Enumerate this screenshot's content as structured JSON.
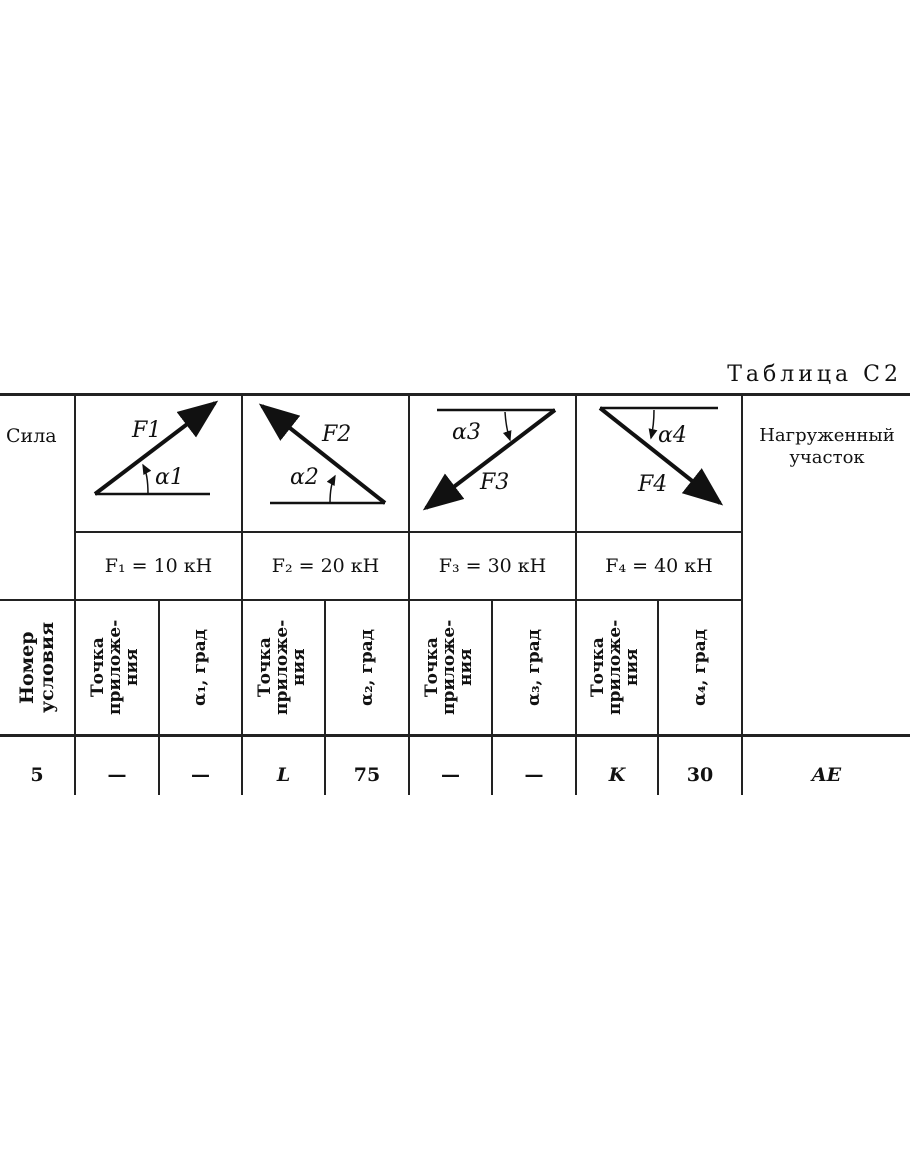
{
  "title": "Таблица С2",
  "header": {
    "force_label": "Сила",
    "loaded_section": "Нагруженный участок",
    "forces": [
      {
        "symbol": "F1",
        "angle": "α1",
        "value": "F₁ = 10 кН"
      },
      {
        "symbol": "F2",
        "angle": "α2",
        "value": "F₂ = 20 кН"
      },
      {
        "symbol": "F3",
        "angle": "α3",
        "value": "F₃ = 30 кН"
      },
      {
        "symbol": "F4",
        "angle": "α4",
        "value": "F₄ = 40 кН"
      }
    ],
    "condition_number": "Номер условия",
    "point_label": "Точка приложе-ния",
    "angle_labels": [
      "α₁, град",
      "α₂, град",
      "α₃, град",
      "α₄, град"
    ]
  },
  "rows": [
    {
      "number": "5",
      "cells": [
        "—",
        "—",
        "L",
        "75",
        "—",
        "—",
        "K",
        "30"
      ],
      "section": "AE"
    }
  ]
}
